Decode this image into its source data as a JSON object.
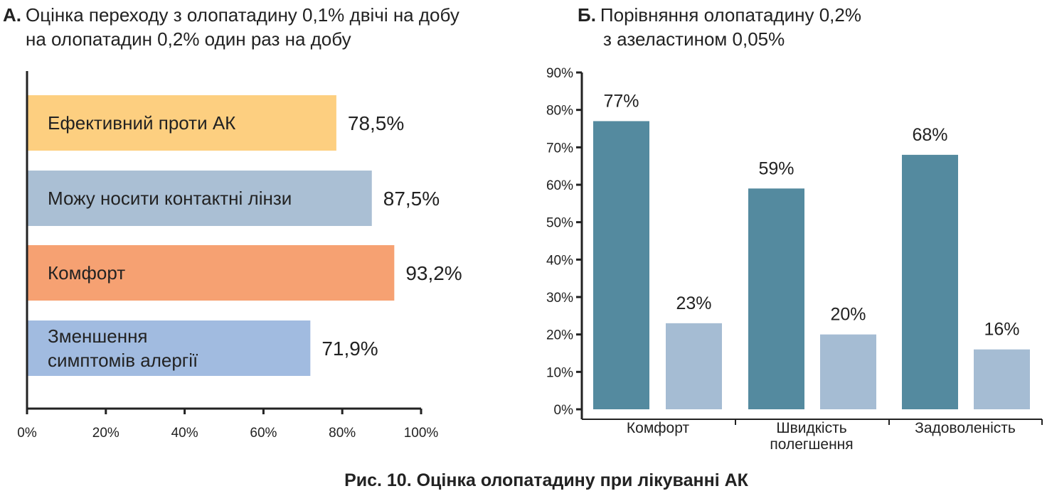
{
  "chart_data": [
    {
      "type": "bar",
      "orientation": "horizontal",
      "title_prefix": "А.",
      "title_line1": "Оцінка переходу з олопатадину 0,1% двічі на добу",
      "title_line2": "на олопатадин 0,2% один раз на добу",
      "categories": [
        "Ефективний проти АК",
        "Можу носити контактні лінзи",
        "Комфорт",
        "Зменшення симптомів алергії"
      ],
      "category_lines": [
        [
          "Ефективний проти АК"
        ],
        [
          "Можу носити контактні лінзи"
        ],
        [
          "Комфорт"
        ],
        [
          "Зменшення",
          "симптомів алергії"
        ]
      ],
      "values": [
        78.5,
        87.5,
        93.2,
        71.9
      ],
      "value_labels": [
        "78,5%",
        "87,5%",
        "93,2%",
        "71,9%"
      ],
      "colors": [
        "#fdcf80",
        "#aabfd4",
        "#f6a172",
        "#a1bbe0"
      ],
      "xlim": [
        0,
        100
      ],
      "xticks": [
        0,
        20,
        40,
        60,
        80,
        100
      ],
      "xtick_labels": [
        "0%",
        "20%",
        "40%",
        "60%",
        "80%",
        "100%"
      ],
      "grid": false
    },
    {
      "type": "bar",
      "orientation": "vertical",
      "title_prefix": "Б.",
      "title_line1": "Порівняння олопатадину 0,2%",
      "title_line2": "з азеластином 0,05%",
      "categories": [
        [
          "Комфорт"
        ],
        [
          "Швидкість",
          "полегшення"
        ],
        [
          "Задоволеність"
        ]
      ],
      "series": [
        {
          "name": "олопатадин 0,2%",
          "color": "#548a9f",
          "values": [
            77,
            59,
            68
          ],
          "labels": [
            "77%",
            "59%",
            "68%"
          ]
        },
        {
          "name": "азеластин 0,05%",
          "color": "#a5bcd3",
          "values": [
            23,
            20,
            16
          ],
          "labels": [
            "23%",
            "20%",
            "16%"
          ]
        }
      ],
      "ylim": [
        0,
        90
      ],
      "yticks": [
        0,
        10,
        20,
        30,
        40,
        50,
        60,
        70,
        80,
        90
      ],
      "ytick_labels": [
        "0%",
        "10%",
        "20%",
        "30%",
        "40%",
        "50%",
        "60%",
        "70%",
        "80%",
        "90%"
      ],
      "grid": false
    }
  ],
  "caption": "Рис. 10. Оцінка олопатадину при лікуванні АК"
}
